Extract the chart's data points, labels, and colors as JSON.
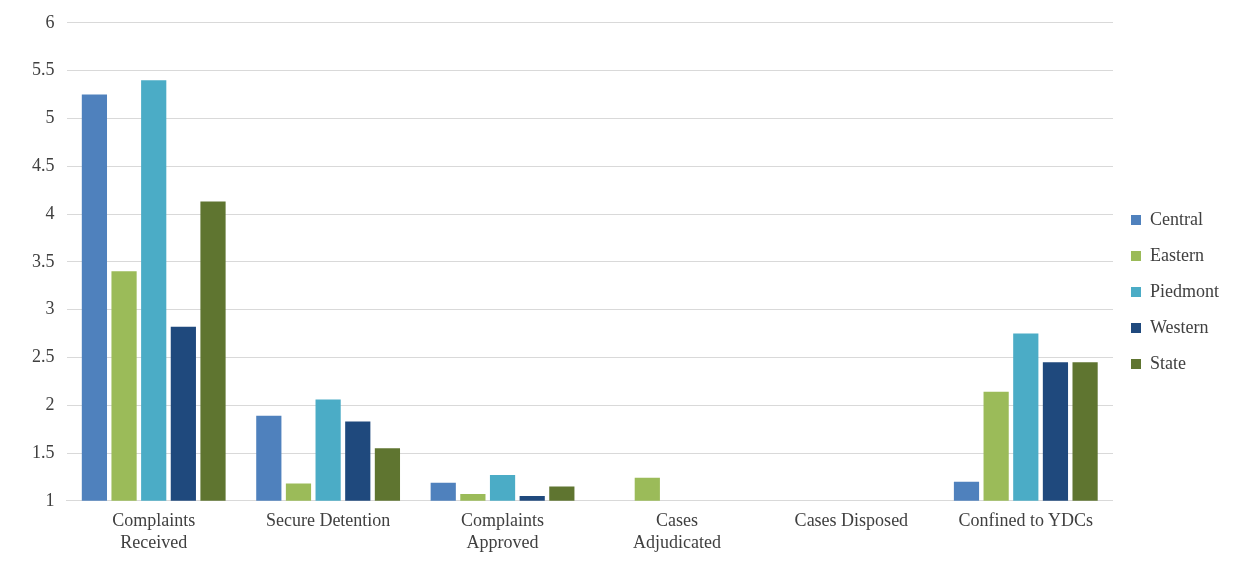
{
  "chart_data": {
    "type": "bar",
    "categories": [
      "Complaints Received",
      "Secure Detention",
      "Complaints Approved",
      "Cases Adjudicated",
      "Cases Disposed",
      "Confined to YDCs"
    ],
    "series": [
      {
        "name": "Central",
        "color": "#4f81bd",
        "values": [
          5.25,
          1.89,
          1.19,
          null,
          null,
          1.2
        ]
      },
      {
        "name": "Eastern",
        "color": "#9bbb59",
        "values": [
          3.4,
          1.18,
          1.07,
          1.24,
          null,
          2.14
        ]
      },
      {
        "name": "Piedmont",
        "color": "#4bacc6",
        "values": [
          5.4,
          2.06,
          1.27,
          null,
          null,
          2.75
        ]
      },
      {
        "name": "Western",
        "color": "#1f497d",
        "values": [
          2.82,
          1.83,
          1.05,
          null,
          null,
          2.45
        ]
      },
      {
        "name": "State",
        "color": "#5f7530",
        "values": [
          4.13,
          1.55,
          1.15,
          null,
          null,
          2.45
        ]
      }
    ],
    "ylim": [
      1,
      6
    ],
    "yticks": [
      1,
      1.5,
      2,
      2.5,
      3,
      3.5,
      4,
      4.5,
      5,
      5.5,
      6
    ],
    "grid": "y",
    "legend": "right"
  }
}
